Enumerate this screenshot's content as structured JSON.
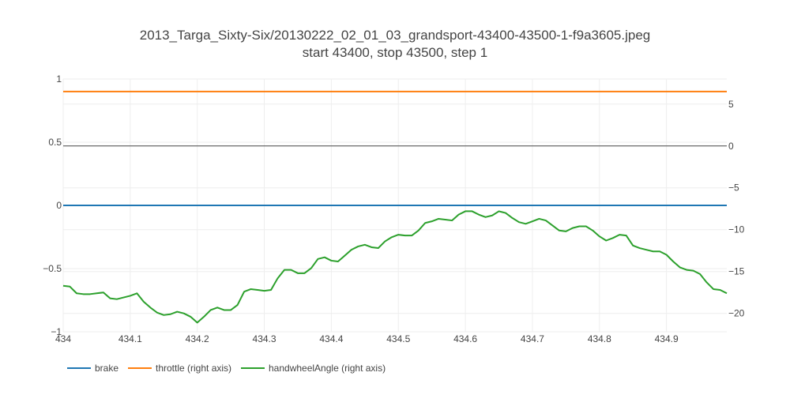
{
  "chart_data": {
    "type": "line",
    "title_line1": "2013_Targa_Sixty-Six/20130222_02_01_03_grandsport-43400-43500-1-f9a3605.jpeg",
    "title_line2": "start 43400, stop 43500, step 1",
    "xlim": [
      434.0,
      434.99
    ],
    "x_ticks": [
      434,
      434.1,
      434.2,
      434.3,
      434.4,
      434.5,
      434.6,
      434.7,
      434.8,
      434.9
    ],
    "x_tick_labels": [
      "434",
      "434.1",
      "434.2",
      "434.3",
      "434.4",
      "434.5",
      "434.6",
      "434.7",
      "434.8",
      "434.9"
    ],
    "y_left": {
      "range": [
        -1,
        1
      ],
      "ticks": [
        1,
        0.5,
        0,
        -0.5,
        -1
      ],
      "tick_labels": [
        "1",
        "0.5",
        "0",
        "−0.5",
        "−1"
      ]
    },
    "y_right": {
      "range": [
        -22.2,
        8.0
      ],
      "ticks": [
        5,
        0,
        -5,
        -10,
        -15,
        -20
      ],
      "tick_labels": [
        "5",
        "0",
        "−5",
        "−10",
        "−15",
        "−20"
      ]
    },
    "grid": true,
    "legend_position": "bottom-left",
    "series": [
      {
        "name": "brake",
        "axis": "left",
        "color": "#1f77b4",
        "x": [
          434.0,
          434.99
        ],
        "values": [
          0,
          0
        ]
      },
      {
        "name": "throttle (right axis)",
        "axis": "right",
        "color": "#ff7f0e",
        "x": [
          434.0,
          434.99
        ],
        "values": [
          6.5,
          6.5
        ]
      },
      {
        "name": "handwheelAngle (right axis)",
        "axis": "right",
        "color": "#2ca02c",
        "x": [
          434.0,
          434.01,
          434.02,
          434.03,
          434.04,
          434.05,
          434.06,
          434.07,
          434.08,
          434.09,
          434.1,
          434.11,
          434.12,
          434.13,
          434.14,
          434.15,
          434.16,
          434.17,
          434.18,
          434.19,
          434.2,
          434.21,
          434.22,
          434.23,
          434.24,
          434.25,
          434.26,
          434.27,
          434.28,
          434.29,
          434.3,
          434.31,
          434.32,
          434.33,
          434.34,
          434.35,
          434.36,
          434.37,
          434.38,
          434.39,
          434.4,
          434.41,
          434.42,
          434.43,
          434.44,
          434.45,
          434.46,
          434.47,
          434.48,
          434.49,
          434.5,
          434.51,
          434.52,
          434.53,
          434.54,
          434.55,
          434.56,
          434.57,
          434.58,
          434.59,
          434.6,
          434.61,
          434.62,
          434.63,
          434.64,
          434.65,
          434.66,
          434.67,
          434.68,
          434.69,
          434.7,
          434.71,
          434.72,
          434.73,
          434.74,
          434.75,
          434.76,
          434.77,
          434.78,
          434.79,
          434.8,
          434.81,
          434.82,
          434.83,
          434.84,
          434.85,
          434.86,
          434.87,
          434.88,
          434.89,
          434.9,
          434.91,
          434.92,
          434.93,
          434.94,
          434.95,
          434.96,
          434.97,
          434.98,
          434.99
        ],
        "values": [
          -16.7,
          -16.8,
          -17.6,
          -17.7,
          -17.7,
          -17.6,
          -17.5,
          -18.2,
          -18.3,
          -18.1,
          -17.9,
          -17.6,
          -18.6,
          -19.3,
          -19.9,
          -20.2,
          -20.1,
          -19.8,
          -20.0,
          -20.4,
          -21.1,
          -20.4,
          -19.6,
          -19.3,
          -19.6,
          -19.6,
          -19.0,
          -17.4,
          -17.1,
          -17.2,
          -17.3,
          -17.2,
          -15.8,
          -14.8,
          -14.8,
          -15.2,
          -15.2,
          -14.6,
          -13.5,
          -13.3,
          -13.7,
          -13.8,
          -13.1,
          -12.4,
          -12.0,
          -11.8,
          -12.1,
          -12.2,
          -11.4,
          -10.9,
          -10.6,
          -10.7,
          -10.7,
          -10.1,
          -9.2,
          -9.0,
          -8.7,
          -8.8,
          -8.9,
          -8.2,
          -7.8,
          -7.8,
          -8.2,
          -8.5,
          -8.3,
          -7.8,
          -8.0,
          -8.6,
          -9.1,
          -9.3,
          -9.0,
          -8.7,
          -8.9,
          -9.5,
          -10.1,
          -10.2,
          -9.8,
          -9.6,
          -9.6,
          -10.1,
          -10.8,
          -11.3,
          -11.0,
          -10.6,
          -10.7,
          -11.9,
          -12.2,
          -12.4,
          -12.6,
          -12.6,
          -13.0,
          -13.8,
          -14.5,
          -14.8,
          -14.9,
          -15.3,
          -16.3,
          -17.1,
          -17.2,
          -17.6
        ]
      }
    ]
  }
}
